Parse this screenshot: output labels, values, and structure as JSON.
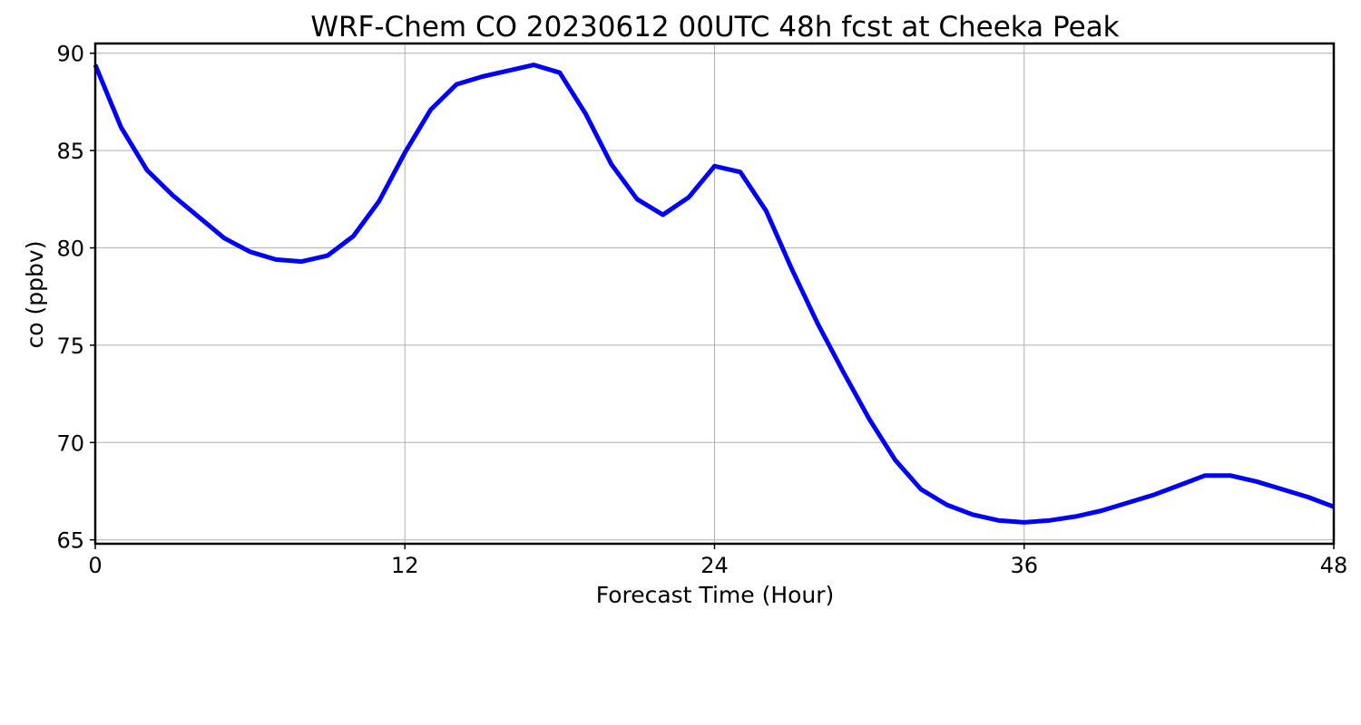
{
  "chart_data": {
    "type": "line",
    "title": "WRF-Chem CO  20230612 00UTC 48h fcst at Cheeka Peak",
    "xlabel": "Forecast Time (Hour)",
    "ylabel": "co  (ppbv)",
    "xlim": [
      0,
      48
    ],
    "ylim": [
      64.8,
      90.5
    ],
    "xticks": [
      0,
      12,
      24,
      36,
      48
    ],
    "yticks": [
      65,
      70,
      75,
      80,
      85,
      90
    ],
    "grid": true,
    "line_color": "#0000ff",
    "series": [
      {
        "x": [
          0,
          1,
          2,
          3,
          4,
          5,
          6,
          7,
          8,
          9,
          10,
          11,
          12,
          13,
          14,
          15,
          16,
          17,
          18,
          19,
          20,
          21,
          22,
          23,
          24,
          25,
          26,
          27,
          28,
          29,
          30,
          31,
          32,
          33,
          34,
          35,
          36,
          37,
          38,
          39,
          40,
          41,
          42,
          43,
          44,
          45,
          46,
          47,
          48
        ],
        "values": [
          89.4,
          86.2,
          84.0,
          82.7,
          81.6,
          80.5,
          79.8,
          79.4,
          79.3,
          79.6,
          80.6,
          82.4,
          84.9,
          87.1,
          88.4,
          88.8,
          89.1,
          89.4,
          89.0,
          86.9,
          84.3,
          82.5,
          81.7,
          82.6,
          84.2,
          83.9,
          81.9,
          78.9,
          76.1,
          73.6,
          71.2,
          69.1,
          67.6,
          66.8,
          66.3,
          66.0,
          65.9,
          66.0,
          66.2,
          66.5,
          66.9,
          67.3,
          67.8,
          68.3,
          68.3,
          68.0,
          67.6,
          67.2,
          66.7
        ]
      }
    ]
  }
}
